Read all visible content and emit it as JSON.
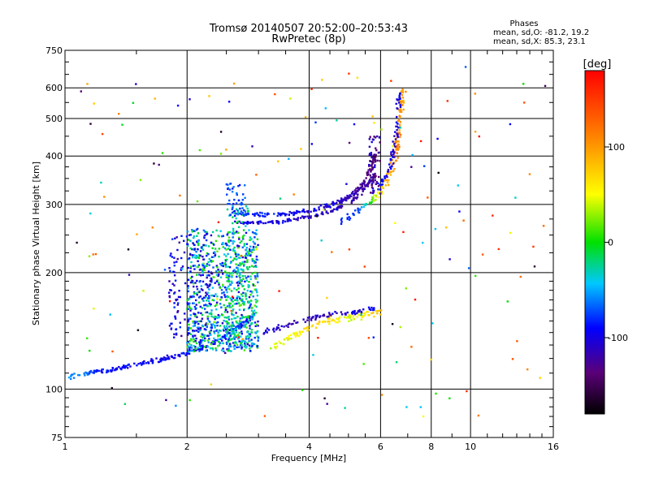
{
  "chart_data": {
    "type": "scatter",
    "title": "Tromsø 20140507 20:52:00–20:53:43",
    "subtitle": "RwPretec (8p)",
    "xlabel": "Frequency [MHz]",
    "ylabel": "Stationary phase Virtual Height [km]",
    "x_scale": "log",
    "y_scale": "log",
    "xlim": [
      1,
      16
    ],
    "ylim": [
      75,
      750
    ],
    "x_ticks": [
      1,
      2,
      4,
      6,
      8,
      10,
      16
    ],
    "x_tick_labels": [
      "1",
      "2",
      "4",
      "6",
      "8",
      "10",
      "16"
    ],
    "y_ticks": [
      75,
      100,
      200,
      300,
      400,
      500,
      600,
      750
    ],
    "y_tick_labels": [
      "75",
      "100",
      "200",
      "300",
      "400",
      "500",
      "600",
      "750"
    ],
    "grid": true,
    "info_title": "Phases",
    "info_lines": [
      "mean, sd,O: -81.2, 19.2",
      "mean, sd,X: 85.3, 23.1"
    ],
    "colorbar": {
      "label": "[deg]",
      "range": [
        -180,
        180
      ],
      "ticks": [
        100,
        0,
        -100
      ],
      "tick_labels": [
        "100",
        "0",
        "-100"
      ]
    },
    "traces": [
      {
        "points": [
          [
            1.02,
            108,
            -60
          ],
          [
            1.1,
            109,
            -60
          ],
          [
            1.2,
            111,
            -95
          ],
          [
            1.35,
            113,
            -100
          ],
          [
            1.5,
            116,
            -100
          ],
          [
            1.7,
            119,
            -105
          ],
          [
            1.9,
            122,
            -100
          ],
          [
            2.1,
            126,
            -100
          ],
          [
            2.3,
            131,
            -100
          ],
          [
            2.5,
            138,
            -95
          ],
          [
            2.7,
            146,
            -90
          ],
          [
            2.9,
            155,
            -95
          ]
        ],
        "spread": 0.02,
        "n": 200
      },
      {
        "points": [
          [
            2.6,
            285,
            -80
          ],
          [
            3.0,
            282,
            -90
          ],
          [
            3.5,
            283,
            -100
          ],
          [
            4.0,
            288,
            -110
          ],
          [
            4.5,
            298,
            -110
          ],
          [
            5.0,
            312,
            -120
          ],
          [
            5.4,
            335,
            -130
          ],
          [
            5.7,
            370,
            -140
          ],
          [
            5.85,
            420,
            -150
          ]
        ],
        "spread": 0.02,
        "n": 200
      },
      {
        "points": [
          [
            2.6,
            270,
            -100
          ],
          [
            3.0,
            268,
            -110
          ],
          [
            3.5,
            272,
            -110
          ],
          [
            4.0,
            278,
            -115
          ],
          [
            4.6,
            290,
            -120
          ],
          [
            5.1,
            305,
            -125
          ],
          [
            5.5,
            330,
            -125
          ],
          [
            5.8,
            360,
            -130
          ]
        ],
        "spread": 0.015,
        "n": 140
      },
      {
        "points": [
          [
            4.8,
            270,
            -90
          ],
          [
            5.3,
            290,
            -80
          ],
          [
            5.8,
            310,
            30
          ],
          [
            6.2,
            340,
            90
          ],
          [
            6.5,
            390,
            110
          ],
          [
            6.65,
            450,
            110
          ],
          [
            6.75,
            520,
            100
          ],
          [
            6.8,
            600,
            100
          ]
        ],
        "spread": 0.025,
        "n": 140
      },
      {
        "points": [
          [
            5.9,
            330,
            -100
          ],
          [
            6.3,
            370,
            -110
          ],
          [
            6.5,
            420,
            -120
          ],
          [
            6.6,
            500,
            -110
          ],
          [
            6.7,
            600,
            -100
          ]
        ],
        "spread": 0.02,
        "n": 70
      },
      {
        "points": [
          [
            3.2,
            128,
            40
          ],
          [
            3.6,
            136,
            50
          ],
          [
            4.0,
            144,
            70
          ],
          [
            4.4,
            150,
            70
          ],
          [
            4.8,
            152,
            50
          ],
          [
            5.2,
            154,
            40
          ],
          [
            5.5,
            156,
            60
          ],
          [
            6.0,
            158,
            90
          ]
        ],
        "spread": 0.03,
        "n": 110
      },
      {
        "points": [
          [
            3.1,
            140,
            -110
          ],
          [
            3.5,
            146,
            -115
          ],
          [
            4.0,
            152,
            -120
          ],
          [
            4.6,
            156,
            -120
          ],
          [
            5.2,
            158,
            -110
          ],
          [
            5.8,
            162,
            -100
          ]
        ],
        "spread": 0.02,
        "n": 90
      }
    ],
    "clouds": [
      {
        "x": [
          2.0,
          3.0
        ],
        "y": [
          125,
          260
        ],
        "phase": [
          -120,
          20
        ],
        "n": 850
      },
      {
        "x": [
          1.8,
          2.3
        ],
        "y": [
          135,
          250
        ],
        "phase": [
          -130,
          -80
        ],
        "n": 140
      },
      {
        "x": [
          2.5,
          2.9
        ],
        "y": [
          130,
          300
        ],
        "phase": [
          -40,
          0
        ],
        "n": 160
      },
      {
        "x": [
          2.5,
          2.8
        ],
        "y": [
          280,
          340
        ],
        "phase": [
          -100,
          -60
        ],
        "n": 50
      },
      {
        "x": [
          5.6,
          6.0
        ],
        "y": [
          320,
          460
        ],
        "phase": [
          -150,
          -100
        ],
        "n": 60
      }
    ],
    "noise_n": 170
  }
}
